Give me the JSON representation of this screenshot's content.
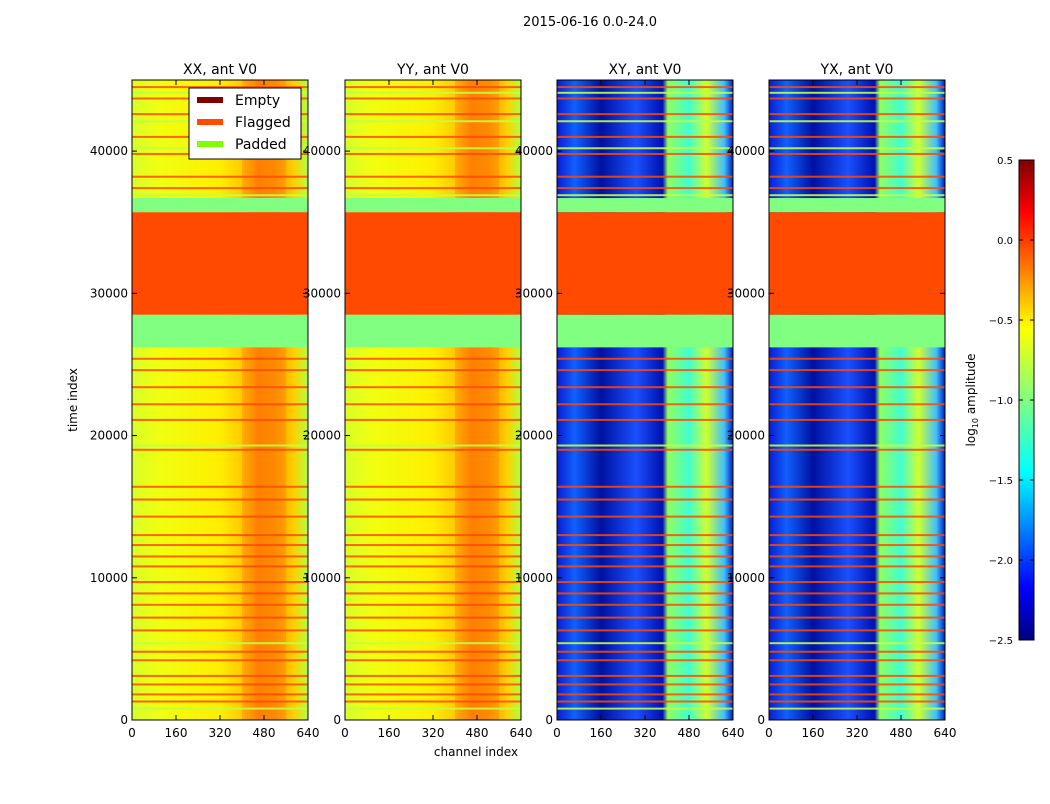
{
  "chart_data": {
    "type": "heatmap",
    "title": "2015-06-16 0.0-24.0",
    "xlabel": "channel index",
    "ylabel": "time index",
    "xlim": [
      0,
      640
    ],
    "ylim": [
      0,
      45000
    ],
    "x_ticks": [
      0,
      160,
      320,
      480,
      640
    ],
    "y_ticks": [
      0,
      10000,
      20000,
      30000,
      40000
    ],
    "panels": [
      {
        "title": "XX, ant V0",
        "style": "auto"
      },
      {
        "title": "YY, ant V0",
        "style": "auto"
      },
      {
        "title": "XY, ant V0",
        "style": "cross"
      },
      {
        "title": "YX, ant V0",
        "style": "cross"
      }
    ],
    "legend": {
      "placement": "top-right of first panel",
      "entries": [
        {
          "label": "Empty",
          "color": "#800000"
        },
        {
          "label": "Flagged",
          "color": "#ff4a00"
        },
        {
          "label": "Padded",
          "color": "#7fff00"
        }
      ]
    },
    "colorbar": {
      "label": "log10 amplitude",
      "label_base": "log",
      "label_sub": "10",
      "label_rest": " amplitude",
      "range": [
        -2.5,
        0.5
      ],
      "ticks": [
        "0.5",
        "0.0",
        "−0.5",
        "−1.0",
        "−1.5",
        "−2.0",
        "−2.5"
      ],
      "tick_values": [
        0.5,
        0.0,
        -0.5,
        -1.0,
        -1.5,
        -2.0,
        -2.5
      ]
    },
    "flagged_region": {
      "time_range": [
        28500,
        35700
      ],
      "color": "#ff4a00"
    },
    "padded_regions": [
      {
        "time_range": [
          26200,
          28500
        ],
        "color": "#80ff80"
      },
      {
        "time_range": [
          35700,
          36700
        ],
        "color": "#80ff80"
      }
    ],
    "flag_lines": [
      1300,
      1800,
      2500,
      3100,
      4200,
      4800,
      6300,
      7200,
      8100,
      8900,
      9700,
      10800,
      11500,
      12300,
      13000,
      14300,
      15500,
      16400,
      19000,
      21100,
      22200,
      23400,
      24600,
      25400,
      28900,
      30300,
      32000,
      37400,
      38200,
      39800,
      41000,
      42600,
      43700,
      44500
    ],
    "padded_lines": [
      800,
      5400,
      19300,
      36900,
      40200,
      42100,
      44100
    ]
  }
}
